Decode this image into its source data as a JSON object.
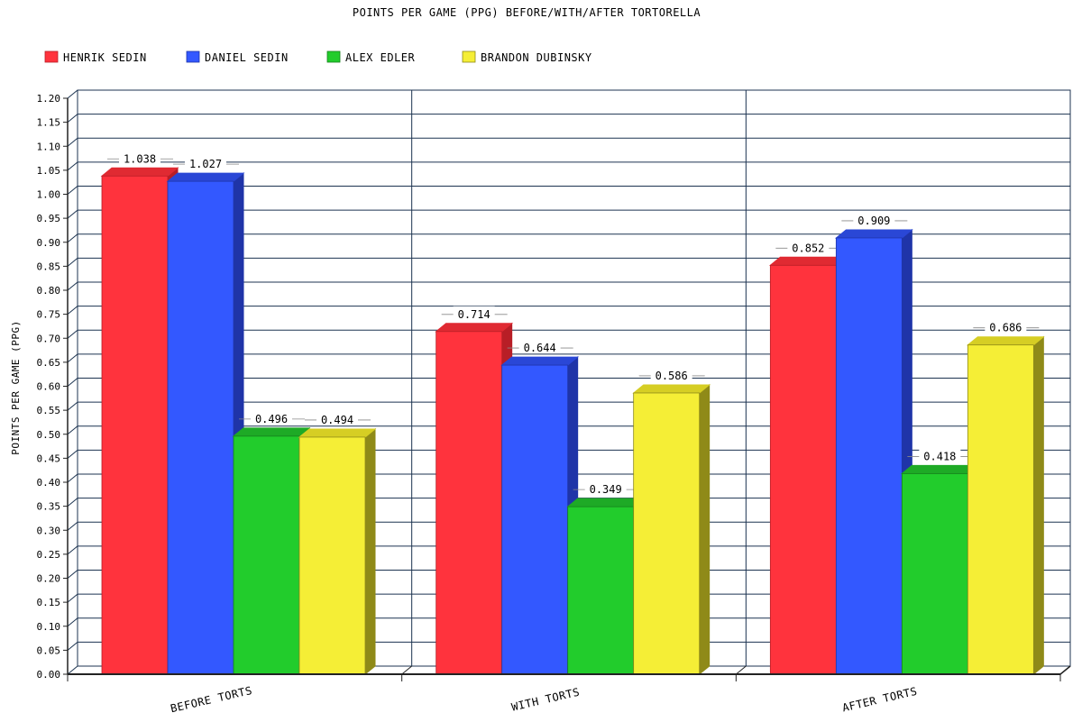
{
  "chart_data": {
    "type": "bar",
    "title": "POINTS PER GAME (PPG) BEFORE/WITH/AFTER TORTORELLA",
    "xlabel": "",
    "ylabel": "POINTS PER GAME (PPG)",
    "ylim": [
      0,
      1.2
    ],
    "ytick_step": 0.05,
    "grid": true,
    "legend_position": "top-left",
    "categories": [
      "BEFORE TORTS",
      "WITH TORTS",
      "AFTER TORTS"
    ],
    "series": [
      {
        "name": "HENRIK SEDIN",
        "color": "#ff333d",
        "side": "#b81e26",
        "top": "#e02a32",
        "values": [
          1.038,
          0.714,
          0.852
        ],
        "labels": [
          "1.038",
          "0.714",
          "0.852"
        ]
      },
      {
        "name": "DANIEL SEDIN",
        "color": "#3358ff",
        "side": "#1f34a8",
        "top": "#2a47d6",
        "values": [
          1.027,
          0.644,
          0.909
        ],
        "labels": [
          "1.027",
          "0.644",
          "0.909"
        ]
      },
      {
        "name": "ALEX EDLER",
        "color": "#22cc2c",
        "side": "#16801c",
        "top": "#1eaa26",
        "values": [
          0.496,
          0.349,
          0.418
        ],
        "labels": [
          "0.496",
          "0.349",
          "0.418"
        ]
      },
      {
        "name": "BRANDON DUBINSKY",
        "color": "#f5ee36",
        "side": "#8f8a18",
        "top": "#d6ce24",
        "values": [
          0.494,
          0.586,
          0.686
        ],
        "labels": [
          "0.494",
          "0.586",
          "0.686"
        ]
      }
    ]
  }
}
